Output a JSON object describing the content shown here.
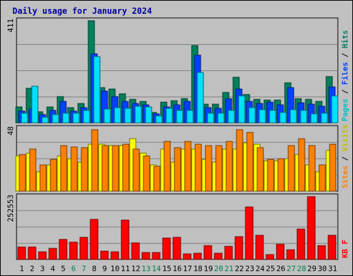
{
  "chart_data": {
    "type": "bar",
    "title": "Daily usage for January 2024",
    "categories": [
      "1",
      "2",
      "3",
      "4",
      "5",
      "6",
      "7",
      "8",
      "9",
      "10",
      "11",
      "12",
      "13",
      "14",
      "15",
      "16",
      "17",
      "18",
      "19",
      "20",
      "21",
      "22",
      "23",
      "24",
      "25",
      "26",
      "27",
      "28",
      "29",
      "30",
      "31"
    ],
    "weekend_days": [
      "6",
      "7",
      "13",
      "14",
      "20",
      "21",
      "27",
      "28"
    ],
    "panels": [
      {
        "id": "hits-files-pages",
        "ymax_label": "411",
        "ylim": [
          0,
          411
        ],
        "series": [
          {
            "name": "Hits",
            "color": "#00805c",
            "values": [
              64,
              140,
              45,
              63,
              106,
              62,
              78,
              411,
              143,
              137,
              116,
              95,
              85,
              41,
              82,
              89,
              96,
              311,
              75,
              76,
              122,
              183,
              113,
              95,
              92,
              92,
              161,
              96,
              95,
              87,
              186
            ]
          },
          {
            "name": "Files",
            "color": "#0040ff",
            "values": [
              47,
              56,
              33,
              49,
              87,
              47,
              62,
              279,
              129,
              106,
              86,
              77,
              73,
              36,
              65,
              73,
              87,
              271,
              62,
              59,
              96,
              135,
              87,
              79,
              82,
              73,
              141,
              80,
              74,
              67,
              145
            ]
          },
          {
            "name": "Pages",
            "color": "#00e0ff",
            "values": [
              38,
              148,
              23,
              32,
              38,
              38,
              51,
              266,
              55,
              60,
              57,
              66,
              63,
              29,
              58,
              50,
              50,
              202,
              40,
              38,
              49,
              109,
              62,
              52,
              49,
              43,
              54,
              49,
              37,
              40,
              108
            ]
          }
        ]
      },
      {
        "id": "sites-visits",
        "ymax_label": "48",
        "ylim": [
          0,
          48
        ],
        "series": [
          {
            "name": "Visits",
            "color": "#ffff00",
            "values": [
              27,
              29,
              15,
              20,
              27,
              25,
              22,
              36,
              36,
              35,
              35,
              40,
              29,
              20,
              32,
              22,
              32,
              32,
              24,
              22,
              32,
              32,
              37,
              36,
              23,
              23,
              25,
              28,
              20,
              15,
              31
            ]
          },
          {
            "name": "Sites",
            "color": "#ff8000",
            "values": [
              28,
              32,
              20,
              24,
              35,
              34,
              33,
              47,
              35,
              35,
              36,
              32,
              27,
              19,
              38,
              33,
              38,
              36,
              35,
              35,
              38,
              47,
              45,
              33,
              24,
              25,
              35,
              40,
              35,
              20,
              36
            ]
          }
        ]
      },
      {
        "id": "kbytes",
        "ymax_label": "252553",
        "ylim": [
          0,
          252553
        ],
        "series": [
          {
            "name": "KB F",
            "color": "#ff0000",
            "values": [
              50000,
              50000,
              30000,
              45000,
              80000,
              70000,
              88000,
              160000,
              32000,
              30000,
              158000,
              66000,
              27000,
              27000,
              87000,
              90000,
              21000,
              25000,
              55000,
              25000,
              53000,
              92000,
              210000,
              98000,
              20000,
              62000,
              40000,
              122000,
              252553,
              55000,
              98000
            ]
          }
        ]
      }
    ]
  },
  "legend": {
    "panel1": [
      {
        "text": "Pages",
        "color": "#00c0c0"
      },
      {
        "text": " / ",
        "color": "#000000"
      },
      {
        "text": "Files",
        "color": "#0040ff"
      },
      {
        "text": " / ",
        "color": "#000000"
      },
      {
        "text": "Hits",
        "color": "#008060"
      }
    ],
    "panel2": [
      {
        "text": "Sites",
        "color": "#ff8000"
      },
      {
        "text": " / ",
        "color": "#000000"
      },
      {
        "text": "Visits",
        "color": "#c0c000"
      }
    ],
    "panel3": [
      {
        "text": "KB F",
        "color": "#ff0000"
      }
    ]
  },
  "colors": {
    "title": "#0000a0",
    "plot_bg": "#c0c0c0",
    "grid": "#808080",
    "weekday_label": "#000000",
    "weekend_label": "#00804c"
  }
}
